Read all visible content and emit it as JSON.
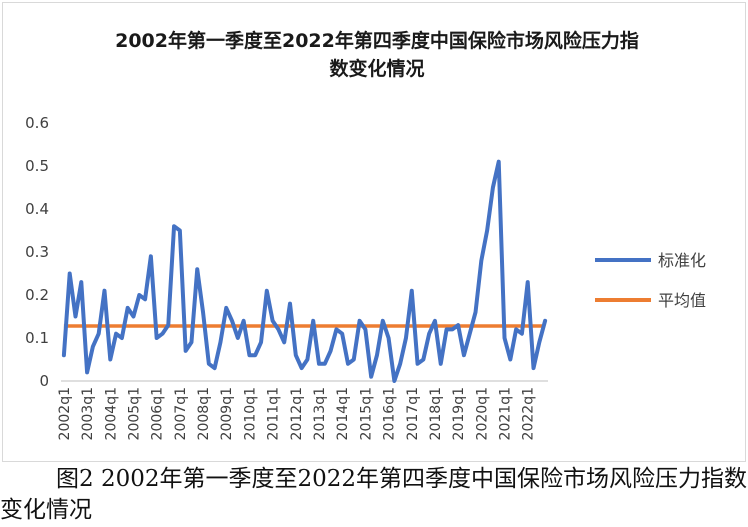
{
  "chart_data": {
    "type": "line",
    "title_line1": "2002年第一季度至2022年第四季度中国保险市场风险压力指",
    "title_line2": "数变化情况",
    "xlabel": "",
    "ylabel": "",
    "ylim": [
      0,
      0.6
    ],
    "yticks": [
      "0",
      "0.1",
      "0.2",
      "0.3",
      "0.4",
      "0.5",
      "0.6"
    ],
    "xtick_labels": [
      "2002q1",
      "2003q1",
      "2004q1",
      "2005q1",
      "2006q1",
      "2007q1",
      "2008q1",
      "2009q1",
      "2010q1",
      "2011q1",
      "2012q1",
      "2013q1",
      "2014q1",
      "2015q1",
      "2016q1",
      "2017q1",
      "2018q1",
      "2019q1",
      "2020q1",
      "2021q1",
      "2022q1"
    ],
    "grid": false,
    "legend_position": "right",
    "series": [
      {
        "name": "标准化",
        "color": "#4472C4",
        "values": [
          0.06,
          0.25,
          0.15,
          0.23,
          0.02,
          0.08,
          0.11,
          0.21,
          0.05,
          0.11,
          0.1,
          0.17,
          0.15,
          0.2,
          0.19,
          0.29,
          0.1,
          0.11,
          0.13,
          0.36,
          0.35,
          0.07,
          0.09,
          0.26,
          0.16,
          0.04,
          0.03,
          0.09,
          0.17,
          0.14,
          0.1,
          0.14,
          0.06,
          0.06,
          0.09,
          0.21,
          0.14,
          0.12,
          0.09,
          0.18,
          0.06,
          0.03,
          0.05,
          0.14,
          0.04,
          0.04,
          0.07,
          0.12,
          0.11,
          0.04,
          0.05,
          0.14,
          0.12,
          0.01,
          0.06,
          0.14,
          0.1,
          0.0,
          0.04,
          0.1,
          0.21,
          0.04,
          0.05,
          0.11,
          0.14,
          0.04,
          0.12,
          0.12,
          0.13,
          0.06,
          0.11,
          0.16,
          0.28,
          0.35,
          0.45,
          0.51,
          0.1,
          0.05,
          0.12,
          0.11,
          0.23,
          0.03,
          0.09,
          0.14
        ]
      },
      {
        "name": "平均值",
        "color": "#ED7D31",
        "values": [
          0.128
        ]
      }
    ]
  },
  "caption": "图2 2002年第一季度至2022年第四季度中国保险市场风险压力指数变化情况"
}
